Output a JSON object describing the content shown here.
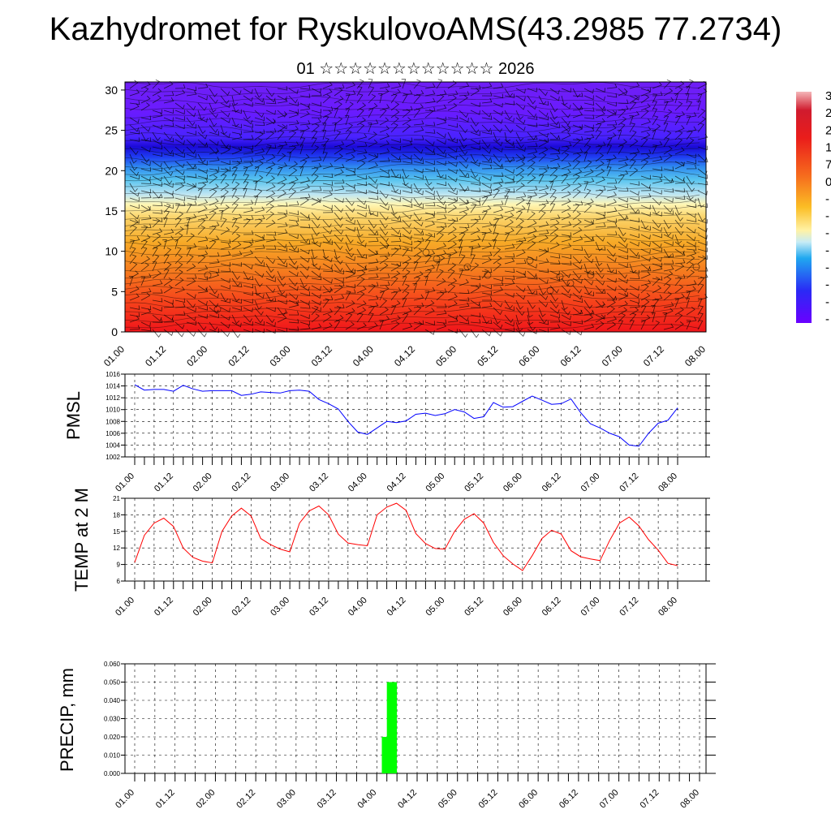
{
  "title": "Kazhydromet for RyskulovoAMS(43.2985 77.2734)",
  "subtitle": "01 ☆☆☆☆☆☆☆☆☆☆☆☆ 2026",
  "chart_data": [
    {
      "type": "heatmap",
      "title": "",
      "ylabel": "",
      "ylim": [
        0,
        31
      ],
      "yticks": [
        0,
        5,
        10,
        15,
        20,
        25,
        30
      ],
      "xticks": [
        "01.00",
        "01.12",
        "02.00",
        "02.12",
        "03.00",
        "03.12",
        "04.00",
        "04.12",
        "05.00",
        "05.12",
        "06.00",
        "06.12",
        "07.00",
        "07.12",
        "08.00"
      ],
      "colorbar_labels": [
        "3",
        "2",
        "2",
        "1",
        "7",
        "0",
        "-",
        "-",
        "-",
        "-",
        "-",
        "-",
        "-",
        "-"
      ],
      "colors": {
        "low": "#6a00ff",
        "high": "#f0151b",
        "mid": "#fff6b4"
      }
    },
    {
      "type": "line",
      "ylabel": "PMSL",
      "ylim": [
        1002,
        1016
      ],
      "yticks": [
        1002,
        1004,
        1006,
        1008,
        1010,
        1012,
        1014,
        1016
      ],
      "xticks": [
        "01.00",
        "01.12",
        "02.00",
        "02.12",
        "03.00",
        "03.12",
        "04.00",
        "04.12",
        "05.00",
        "05.12",
        "06.00",
        "06.12",
        "07.00",
        "07.12",
        "08.00"
      ],
      "series": [
        {
          "color": "#0000ff",
          "values": [
            1014.2,
            1013.3,
            1013.4,
            1013.4,
            1013.1,
            1014.1,
            1013.5,
            1013.1,
            1013.2,
            1013.2,
            1013.2,
            1012.4,
            1012.6,
            1013.0,
            1012.9,
            1012.8,
            1013.2,
            1013.3,
            1013.1,
            1011.7,
            1011.0,
            1010.1,
            1008.0,
            1006.2,
            1005.8,
            1006.9,
            1008.0,
            1007.8,
            1008.1,
            1009.2,
            1009.4,
            1009.0,
            1009.3,
            1010.0,
            1009.6,
            1008.5,
            1008.8,
            1011.2,
            1010.4,
            1010.5,
            1011.4,
            1012.3,
            1011.6,
            1010.9,
            1011.0,
            1011.8,
            1009.5,
            1007.6,
            1006.9,
            1006.0,
            1005.4,
            1004.0,
            1003.8,
            1006.0,
            1007.7,
            1008.2,
            1010.3
          ]
        }
      ]
    },
    {
      "type": "line",
      "ylabel": "TEMP at 2 M",
      "ylim": [
        6,
        21
      ],
      "yticks": [
        6,
        9,
        12,
        15,
        18,
        21
      ],
      "xticks": [
        "01.00",
        "01.12",
        "02.00",
        "02.12",
        "03.00",
        "03.12",
        "04.00",
        "04.12",
        "05.00",
        "05.12",
        "06.00",
        "06.12",
        "07.00",
        "07.12",
        "08.00"
      ],
      "series": [
        {
          "color": "#ff0000",
          "values": [
            9.4,
            14.3,
            16.5,
            17.4,
            15.9,
            12.0,
            10.3,
            9.6,
            9.3,
            15.0,
            17.8,
            19.2,
            17.8,
            13.7,
            12.6,
            11.8,
            11.3,
            16.5,
            18.7,
            19.6,
            18.0,
            14.5,
            12.9,
            12.6,
            12.4,
            18.0,
            19.4,
            20.1,
            18.8,
            14.6,
            12.8,
            11.9,
            11.8,
            15.0,
            17.2,
            18.2,
            16.5,
            13.0,
            10.6,
            9.1,
            7.9,
            10.6,
            13.7,
            15.2,
            14.5,
            11.5,
            10.4,
            10.0,
            9.7,
            13.4,
            16.5,
            17.6,
            16.0,
            13.5,
            11.6,
            9.2,
            8.8
          ]
        }
      ]
    },
    {
      "type": "bar",
      "ylabel": "PRECIP, mm",
      "ylim": [
        0,
        0.06
      ],
      "yticks": [
        "0.000",
        "0.010",
        "0.020",
        "0.030",
        "0.040",
        "0.050",
        "0.060"
      ],
      "xticks": [
        "01.00",
        "01.12",
        "02.00",
        "02.12",
        "03.00",
        "03.12",
        "04.00",
        "04.12",
        "05.00",
        "05.12",
        "06.00",
        "06.12",
        "07.00",
        "07.12",
        "08.00"
      ],
      "bar_color": "#00ff00",
      "bars": [
        {
          "at": 6.25,
          "value": 0.02
        },
        {
          "at": 6.375,
          "value": 0.05
        }
      ]
    }
  ]
}
